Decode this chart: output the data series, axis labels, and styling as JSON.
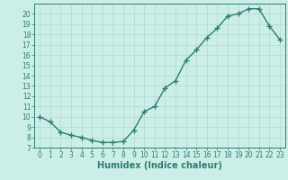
{
  "x": [
    0,
    1,
    2,
    3,
    4,
    5,
    6,
    7,
    8,
    9,
    10,
    11,
    12,
    13,
    14,
    15,
    16,
    17,
    18,
    19,
    20,
    21,
    22,
    23
  ],
  "y": [
    10,
    9.5,
    8.5,
    8.2,
    8.0,
    7.7,
    7.5,
    7.5,
    7.6,
    8.7,
    10.5,
    11.0,
    12.8,
    13.5,
    15.5,
    16.5,
    17.7,
    18.6,
    19.8,
    20.0,
    20.5,
    20.5,
    18.8,
    17.5
  ],
  "line_color": "#2e7d6e",
  "marker": "+",
  "marker_size": 4,
  "bg_color": "#cceee8",
  "grid_color": "#b0d8d0",
  "xlabel": "Humidex (Indice chaleur)",
  "xlim": [
    -0.5,
    23.5
  ],
  "ylim": [
    7,
    21
  ],
  "yticks": [
    7,
    8,
    9,
    10,
    11,
    12,
    13,
    14,
    15,
    16,
    17,
    18,
    19,
    20
  ],
  "xticks": [
    0,
    1,
    2,
    3,
    4,
    5,
    6,
    7,
    8,
    9,
    10,
    11,
    12,
    13,
    14,
    15,
    16,
    17,
    18,
    19,
    20,
    21,
    22,
    23
  ],
  "tick_fontsize": 5.5,
  "label_fontsize": 7,
  "line_width": 1.0
}
